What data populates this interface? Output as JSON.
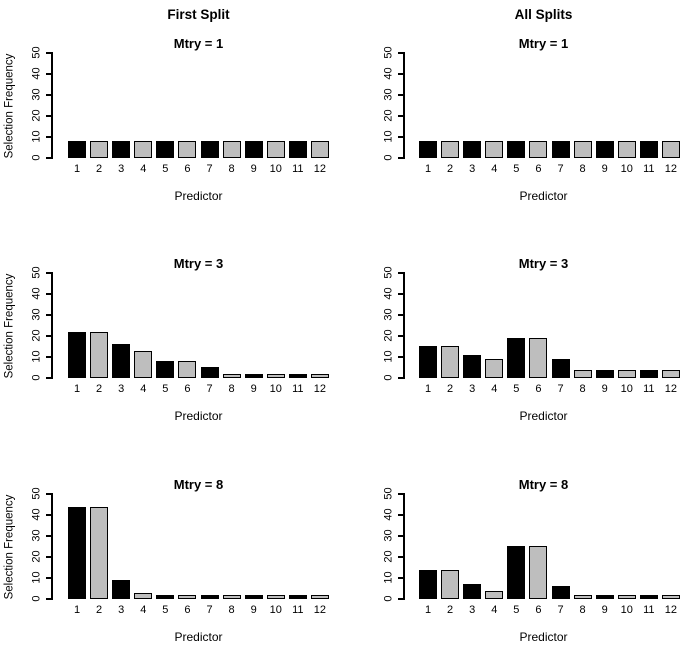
{
  "page": {
    "background": "#ffffff",
    "text_color": "#000000"
  },
  "column_headers": [
    "First Split",
    "All Splits"
  ],
  "colors": {
    "bar_odd": "#000000",
    "bar_even": "#bebebe",
    "bar_border": "#000000",
    "axis": "#000000"
  },
  "chart_data": [
    {
      "type": "bar",
      "column": "First Split",
      "title": "Mtry = 1",
      "xlabel": "Predictor",
      "ylabel": "Selection Frequency",
      "ylim": [
        0,
        50
      ],
      "yticks": [
        0,
        10,
        20,
        30,
        40,
        50
      ],
      "categories": [
        "1",
        "2",
        "3",
        "4",
        "5",
        "6",
        "7",
        "8",
        "9",
        "10",
        "11",
        "12"
      ],
      "values": [
        8,
        8,
        8,
        8,
        8,
        8,
        8,
        8,
        8,
        8,
        8,
        8
      ],
      "bar_colors": [
        "#000000",
        "#bebebe"
      ],
      "grid": false,
      "legend": false
    },
    {
      "type": "bar",
      "column": "All Splits",
      "title": "Mtry = 1",
      "xlabel": "Predictor",
      "ylim": [
        0,
        50
      ],
      "yticks": [
        0,
        10,
        20,
        30,
        40,
        50
      ],
      "categories": [
        "1",
        "2",
        "3",
        "4",
        "5",
        "6",
        "7",
        "8",
        "9",
        "10",
        "11",
        "12"
      ],
      "values": [
        8,
        8,
        8,
        8,
        8,
        8,
        8,
        8,
        8,
        8,
        8,
        8
      ],
      "bar_colors": [
        "#000000",
        "#bebebe"
      ],
      "grid": false,
      "legend": false
    },
    {
      "type": "bar",
      "column": "First Split",
      "title": "Mtry = 3",
      "xlabel": "Predictor",
      "ylabel": "Selection Frequency",
      "ylim": [
        0,
        50
      ],
      "yticks": [
        0,
        10,
        20,
        30,
        40,
        50
      ],
      "categories": [
        "1",
        "2",
        "3",
        "4",
        "5",
        "6",
        "7",
        "8",
        "9",
        "10",
        "11",
        "12"
      ],
      "values": [
        22,
        22,
        16,
        13,
        8,
        8,
        5,
        1,
        1,
        1,
        1,
        1
      ],
      "bar_colors": [
        "#000000",
        "#bebebe"
      ],
      "grid": false,
      "legend": false
    },
    {
      "type": "bar",
      "column": "All Splits",
      "title": "Mtry = 3",
      "xlabel": "Predictor",
      "ylim": [
        0,
        50
      ],
      "yticks": [
        0,
        10,
        20,
        30,
        40,
        50
      ],
      "categories": [
        "1",
        "2",
        "3",
        "4",
        "5",
        "6",
        "7",
        "8",
        "9",
        "10",
        "11",
        "12"
      ],
      "values": [
        15,
        15,
        11,
        9,
        19,
        19,
        9,
        4,
        4,
        4,
        4,
        4
      ],
      "bar_colors": [
        "#000000",
        "#bebebe"
      ],
      "grid": false,
      "legend": false
    },
    {
      "type": "bar",
      "column": "First Split",
      "title": "Mtry = 8",
      "xlabel": "Predictor",
      "ylabel": "Selection Frequency",
      "ylim": [
        0,
        50
      ],
      "yticks": [
        0,
        10,
        20,
        30,
        40,
        50
      ],
      "categories": [
        "1",
        "2",
        "3",
        "4",
        "5",
        "6",
        "7",
        "8",
        "9",
        "10",
        "11",
        "12"
      ],
      "values": [
        44,
        44,
        9,
        3,
        1,
        1,
        1,
        1,
        1,
        1,
        1,
        1
      ],
      "bar_colors": [
        "#000000",
        "#bebebe"
      ],
      "grid": false,
      "legend": false
    },
    {
      "type": "bar",
      "column": "All Splits",
      "title": "Mtry = 8",
      "xlabel": "Predictor",
      "ylim": [
        0,
        50
      ],
      "yticks": [
        0,
        10,
        20,
        30,
        40,
        50
      ],
      "categories": [
        "1",
        "2",
        "3",
        "4",
        "5",
        "6",
        "7",
        "8",
        "9",
        "10",
        "11",
        "12"
      ],
      "values": [
        14,
        14,
        7,
        4,
        25,
        25,
        6,
        1,
        1,
        1,
        1,
        1
      ],
      "bar_colors": [
        "#000000",
        "#bebebe"
      ],
      "grid": false,
      "legend": false
    }
  ]
}
